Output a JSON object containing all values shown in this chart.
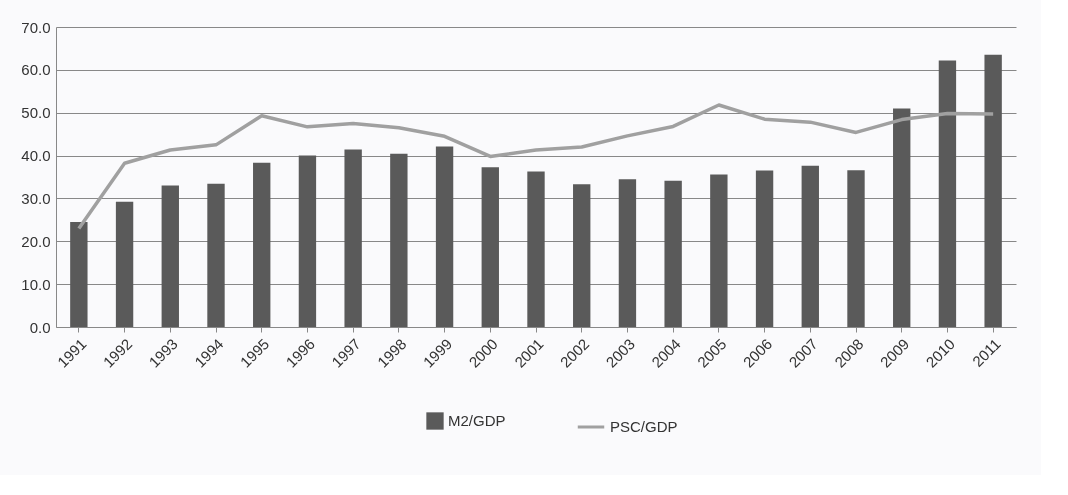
{
  "chart_data": {
    "type": "bar",
    "categories": [
      "1991",
      "1992",
      "1993",
      "1994",
      "1995",
      "1996",
      "1997",
      "1998",
      "1999",
      "2000",
      "2001",
      "2002",
      "2003",
      "2004",
      "2005",
      "2006",
      "2007",
      "2008",
      "2009",
      "2010",
      "2011"
    ],
    "series": [
      {
        "name": "M2/GDP",
        "color": "#5a5a5a",
        "values": [
          24.5,
          29.2,
          33.0,
          33.4,
          38.3,
          40.0,
          41.4,
          40.4,
          42.1,
          37.3,
          36.3,
          33.3,
          34.5,
          34.1,
          35.6,
          36.5,
          37.6,
          36.6,
          51.0,
          62.2,
          63.5
        ]
      },
      {
        "name": "PSC/GDP",
        "type": "line",
        "color": "#a0a0a0",
        "values": [
          23.0,
          38.2,
          41.3,
          42.5,
          49.3,
          46.7,
          47.5,
          46.5,
          44.5,
          39.8,
          41.3,
          42.0,
          44.6,
          46.8,
          51.8,
          48.5,
          47.8,
          45.4,
          48.4,
          49.8,
          49.7
        ]
      }
    ],
    "ylim": [
      0,
      70
    ],
    "yticks": [
      {
        "value": 0,
        "label": "0.0"
      },
      {
        "value": 10,
        "label": "10.0"
      },
      {
        "value": 20,
        "label": "20.0"
      },
      {
        "value": 30,
        "label": "30.0"
      },
      {
        "value": 40,
        "label": "40.0"
      },
      {
        "value": 50,
        "label": "50.0"
      },
      {
        "value": 60,
        "label": "60.0"
      },
      {
        "value": 70,
        "label": "70.0"
      }
    ],
    "grid": "y",
    "legend": "bottom",
    "marker": "none",
    "line_style": "solid"
  }
}
